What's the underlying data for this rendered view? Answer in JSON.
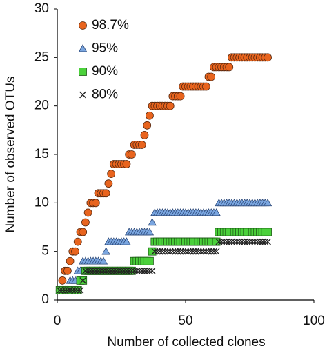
{
  "chart_data": {
    "type": "scatter",
    "xlabel": "Number of collected clones",
    "ylabel": "Number of observed OTUs",
    "xlim": [
      0,
      100
    ],
    "xticks": [
      0,
      50,
      100
    ],
    "ylim": [
      0,
      30
    ],
    "yticks": [
      0,
      5,
      10,
      15,
      20,
      25,
      30
    ],
    "legend": "upper left",
    "x": [
      1,
      2,
      3,
      4,
      5,
      6,
      7,
      8,
      9,
      10,
      11,
      12,
      13,
      14,
      15,
      16,
      17,
      18,
      19,
      20,
      21,
      22,
      23,
      24,
      25,
      26,
      27,
      28,
      29,
      30,
      31,
      32,
      33,
      34,
      35,
      36,
      37,
      38,
      39,
      40,
      41,
      42,
      43,
      44,
      45,
      46,
      47,
      48,
      49,
      50,
      51,
      52,
      53,
      54,
      55,
      56,
      57,
      58,
      59,
      60,
      61,
      62,
      63,
      64,
      65,
      66,
      67,
      68,
      69,
      70,
      71,
      72,
      73,
      74,
      75,
      76,
      77,
      78,
      79,
      80,
      81,
      82
    ],
    "series": [
      {
        "name": "98.7%",
        "color": "#e8641e",
        "marker": "circle",
        "values": [
          1,
          2,
          3,
          3,
          4,
          5,
          5,
          6,
          7,
          7,
          8,
          9,
          10,
          10,
          10,
          11,
          11,
          11,
          11,
          12,
          13,
          14,
          14,
          14,
          14,
          14,
          14,
          15,
          15,
          16,
          16,
          16,
          16,
          17,
          18,
          19,
          20,
          20,
          20,
          20,
          20,
          20,
          20,
          20,
          21,
          21,
          21,
          21,
          22,
          22,
          22,
          22,
          22,
          22,
          22,
          22,
          22,
          22,
          23,
          23,
          24,
          24,
          24,
          24,
          24,
          24,
          24,
          25,
          25,
          25,
          25,
          25,
          25,
          25,
          25,
          25,
          25,
          25,
          25,
          25,
          25,
          25
        ]
      },
      {
        "name": "95%",
        "color": "#7aa6e0",
        "marker": "triangle",
        "values": [
          1,
          1,
          1,
          1,
          2,
          2,
          2,
          3,
          3,
          4,
          4,
          4,
          4,
          4,
          4,
          4,
          4,
          4,
          5,
          6,
          6,
          6,
          6,
          6,
          6,
          6,
          6,
          7,
          7,
          7,
          7,
          7,
          7,
          7,
          7,
          7,
          8,
          9,
          9,
          9,
          9,
          9,
          9,
          9,
          9,
          9,
          9,
          9,
          9,
          9,
          9,
          9,
          9,
          9,
          9,
          9,
          9,
          9,
          9,
          9,
          9,
          9,
          10,
          10,
          10,
          10,
          10,
          10,
          10,
          10,
          10,
          10,
          10,
          10,
          10,
          10,
          10,
          10,
          10,
          10,
          10,
          10
        ]
      },
      {
        "name": "90%",
        "color": "#4bd13b",
        "marker": "square",
        "values": [
          1,
          1,
          1,
          1,
          1,
          1,
          1,
          1,
          2,
          2,
          3,
          3,
          3,
          3,
          3,
          3,
          3,
          3,
          3,
          3,
          3,
          3,
          3,
          3,
          3,
          3,
          3,
          3,
          3,
          4,
          4,
          4,
          4,
          4,
          4,
          4,
          5,
          6,
          6,
          6,
          6,
          6,
          6,
          6,
          6,
          6,
          6,
          6,
          6,
          6,
          6,
          6,
          6,
          6,
          6,
          6,
          6,
          6,
          6,
          6,
          6,
          6,
          7,
          7,
          7,
          7,
          7,
          7,
          7,
          7,
          7,
          7,
          7,
          7,
          7,
          7,
          7,
          7,
          7,
          7,
          7,
          7
        ]
      },
      {
        "name": "80%",
        "color": "#222222",
        "marker": "cross",
        "values": [
          1,
          1,
          1,
          1,
          1,
          1,
          1,
          1,
          1,
          2,
          3,
          3,
          3,
          3,
          3,
          3,
          3,
          3,
          3,
          3,
          3,
          3,
          3,
          3,
          3,
          3,
          3,
          3,
          3,
          3,
          3,
          3,
          3,
          3,
          3,
          3,
          3,
          5,
          5,
          5,
          5,
          5,
          5,
          5,
          5,
          5,
          5,
          5,
          5,
          5,
          5,
          5,
          5,
          5,
          5,
          5,
          5,
          5,
          5,
          5,
          5,
          5,
          6,
          6,
          6,
          6,
          6,
          6,
          6,
          6,
          6,
          6,
          6,
          6,
          6,
          6,
          6,
          6,
          6,
          6,
          6,
          6
        ]
      }
    ]
  }
}
